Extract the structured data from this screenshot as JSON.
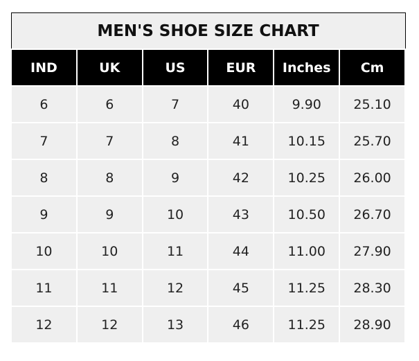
{
  "chart_data": {
    "type": "table",
    "title": "MEN'S SHOE SIZE CHART",
    "columns": [
      "IND",
      "UK",
      "US",
      "EUR",
      "Inches",
      "Cm"
    ],
    "rows": [
      [
        "6",
        "6",
        "7",
        "40",
        "9.90",
        "25.10"
      ],
      [
        "7",
        "7",
        "8",
        "41",
        "10.15",
        "25.70"
      ],
      [
        "8",
        "8",
        "9",
        "42",
        "10.25",
        "26.00"
      ],
      [
        "9",
        "9",
        "10",
        "43",
        "10.50",
        "26.70"
      ],
      [
        "10",
        "10",
        "11",
        "44",
        "11.00",
        "27.90"
      ],
      [
        "11",
        "11",
        "12",
        "45",
        "11.25",
        "28.30"
      ],
      [
        "12",
        "12",
        "13",
        "46",
        "11.25",
        "28.90"
      ]
    ]
  },
  "colors": {
    "header_bg": "#000000",
    "cell_bg": "#efefef"
  }
}
